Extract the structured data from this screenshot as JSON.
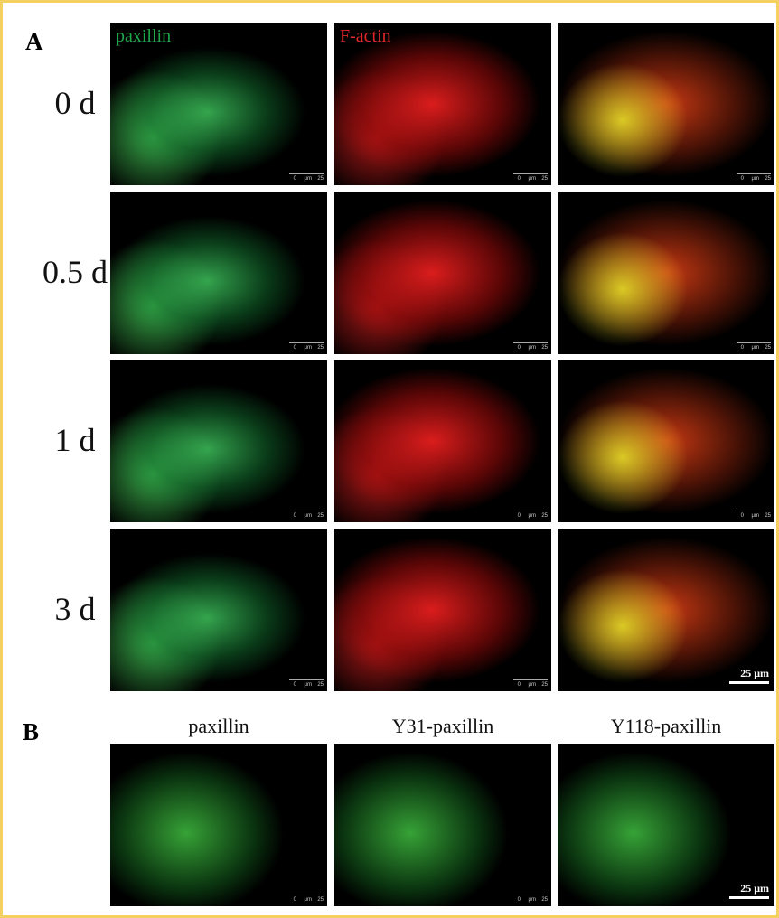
{
  "panel_a": {
    "label": "A",
    "columns": [
      "paxillin",
      "F-actin"
    ],
    "rows": [
      "0 d",
      "0.5 d",
      "1 d",
      "3 d"
    ],
    "scale_bar": "25 μm"
  },
  "panel_b": {
    "label": "B",
    "columns": [
      "paxillin",
      "Y31-paxillin",
      "Y118-paxillin"
    ],
    "scale_bar": "25 μm"
  },
  "scale_ticks": [
    "0",
    "μm",
    "25"
  ]
}
